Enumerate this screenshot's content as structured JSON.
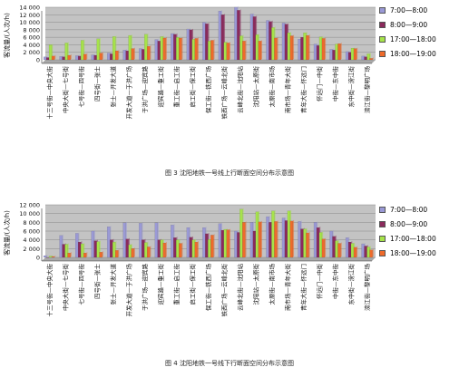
{
  "captions": {
    "fig3": "图 3   沈阳地铁一号线上行断面空间分布示意图",
    "fig4": "图 4   沈阳地铁一号线下行断面空间分布示意图"
  },
  "colors": {
    "s1": "#9a99d6",
    "s2": "#8b2a5c",
    "s3": "#a6e34a",
    "s4": "#ef6a2a",
    "plot_bg": "#c3c3c3",
    "wall_bg": "#b4b4b4"
  },
  "chart_data": [
    {
      "type": "bar",
      "title": "",
      "xlabel": "",
      "ylabel": "客流量/(人次/h)",
      "ylim": [
        0,
        14000
      ],
      "yticks": [
        "0",
        "2 000",
        "4 000",
        "6 000",
        "8 000",
        "10 000",
        "12 000",
        "14 000"
      ],
      "grid": true,
      "legend_position": "right",
      "categories": [
        "十三号街—中央大街",
        "中央大街—七号街",
        "七号街—四号街",
        "四号街—张士",
        "张士—开发大道",
        "开发大道—于洪广场",
        "于洪广场—迎宾路",
        "迎宾路—重工街",
        "重工街—启工街",
        "启工街—保工街",
        "保工街—铁西广场",
        "铁西广场—云峰北街",
        "云峰北街—沈阳站",
        "沈阳站—太原街",
        "太原街—南市场",
        "南市场—青年大街",
        "青年大街—怀远门",
        "怀远门—中街",
        "中街—东中街",
        "东中街—滂江街",
        "滂江街—黎明广场"
      ],
      "series": [
        {
          "name": "7:00—8:00",
          "values": [
            800,
            900,
            1100,
            1300,
            1800,
            2600,
            3000,
            5400,
            7000,
            8200,
            10000,
            13000,
            14000,
            12200,
            10500,
            9800,
            5500,
            4200,
            2800,
            2200,
            1000
          ]
        },
        {
          "name": "8:00—9:00",
          "values": [
            600,
            800,
            1000,
            1200,
            1600,
            2400,
            2800,
            5000,
            6800,
            8000,
            9600,
            12000,
            13200,
            11500,
            10200,
            9500,
            6000,
            3800,
            2600,
            2000,
            800
          ]
        },
        {
          "name": "17:00—18:00",
          "values": [
            4000,
            4500,
            5200,
            5600,
            6200,
            6500,
            6800,
            6200,
            6000,
            5500,
            5000,
            4700,
            6400,
            6700,
            8600,
            7200,
            7200,
            6100,
            4200,
            3100,
            1600
          ]
        },
        {
          "name": "18:00—19:00",
          "values": [
            1000,
            1200,
            1500,
            1800,
            2400,
            3000,
            3600,
            5800,
            5800,
            5700,
            5200,
            4500,
            5000,
            5000,
            5800,
            6400,
            6500,
            5700,
            4300,
            3000,
            400
          ]
        }
      ]
    },
    {
      "type": "bar",
      "title": "",
      "xlabel": "",
      "ylabel": "客流量/(人次/h)",
      "ylim": [
        0,
        12000
      ],
      "yticks": [
        "0",
        "2 000",
        "4 000",
        "6 000",
        "8 000",
        "10 000",
        "12 000"
      ],
      "grid": true,
      "legend_position": "right",
      "categories": [
        "十三号街—中央大街",
        "中央大街—七号街",
        "七号街—四号街",
        "四号街—张士",
        "张士—开发大道",
        "开发大道—于洪广场",
        "于洪广场—迎宾路",
        "迎宾路—重工街",
        "重工街—启工街",
        "启工街—保工街",
        "保工街—铁西广场",
        "铁西广场—云峰北街",
        "云峰北街—沈阳站",
        "沈阳站—太原街",
        "太原街—南市场",
        "南市场—青年大街",
        "青年大街—怀远门",
        "怀远门—中街",
        "中街—东中街",
        "东中街—滂江街",
        "滂江街—黎明广场"
      ],
      "series": [
        {
          "name": "7:00—8:00",
          "values": [
            400,
            5000,
            5500,
            6000,
            7000,
            7900,
            7800,
            7900,
            7400,
            6800,
            6800,
            7700,
            6000,
            8000,
            9300,
            9000,
            8200,
            8000,
            6000,
            4500,
            3100
          ]
        },
        {
          "name": "8:00—9:00",
          "values": [
            0,
            3000,
            3500,
            3800,
            4000,
            4200,
            4000,
            4000,
            4500,
            4600,
            5400,
            6200,
            5700,
            6000,
            8000,
            8400,
            6500,
            6800,
            4800,
            3500,
            2600
          ]
        },
        {
          "name": "17:00—18:00",
          "values": [
            300,
            3000,
            3100,
            3600,
            3500,
            2900,
            3400,
            4000,
            4000,
            4000,
            4100,
            6400,
            11000,
            10400,
            10600,
            10600,
            6500,
            5700,
            3800,
            3200,
            2400
          ]
        },
        {
          "name": "18:00—19:00",
          "values": [
            200,
            1000,
            1000,
            1200,
            1600,
            2000,
            2400,
            3300,
            3200,
            3500,
            5100,
            6300,
            8000,
            8100,
            8200,
            8300,
            5600,
            4200,
            3200,
            2300,
            1700
          ]
        }
      ]
    }
  ]
}
